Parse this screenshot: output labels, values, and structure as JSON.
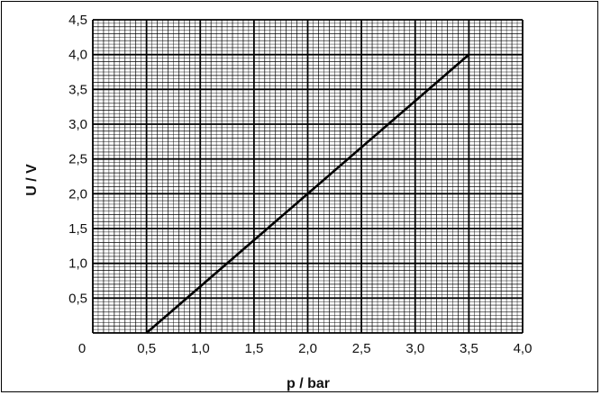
{
  "chart_data": {
    "type": "line",
    "xlabel": "p / bar",
    "ylabel": "U / V",
    "xlim": [
      0,
      4.0
    ],
    "ylim": [
      0,
      4.5
    ],
    "x_ticks": [
      "0",
      "0,5",
      "1,0",
      "1,5",
      "2,0",
      "2,5",
      "3,0",
      "3,5",
      "4,0"
    ],
    "y_ticks": [
      "0,5",
      "1,0",
      "1,5",
      "2,0",
      "2,5",
      "3,0",
      "3,5",
      "4,0",
      "4,5"
    ],
    "grid": "on",
    "series": [
      {
        "x": [
          0.5,
          3.5
        ],
        "y": [
          0.0,
          4.0
        ]
      }
    ]
  }
}
